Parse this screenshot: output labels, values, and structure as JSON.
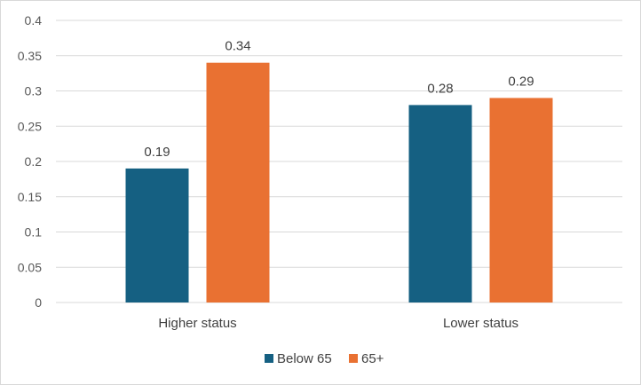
{
  "chart_data": {
    "type": "bar",
    "categories": [
      "Higher status",
      "Lower status"
    ],
    "series": [
      {
        "name": "Below 65",
        "values": [
          0.19,
          0.28
        ],
        "color": "#156082"
      },
      {
        "name": "65+",
        "values": [
          0.34,
          0.29
        ],
        "color": "#E97132"
      }
    ],
    "ylim": [
      0,
      0.4
    ],
    "yticks": [
      "0",
      "0.05",
      "0.1",
      "0.15",
      "0.2",
      "0.25",
      "0.3",
      "0.35",
      "0.4"
    ],
    "data_labels": [
      [
        "0.19",
        "0.28"
      ],
      [
        "0.34",
        "0.29"
      ]
    ],
    "grid": true,
    "gridline_color": "#d9d9d9",
    "legend": "bottom"
  }
}
